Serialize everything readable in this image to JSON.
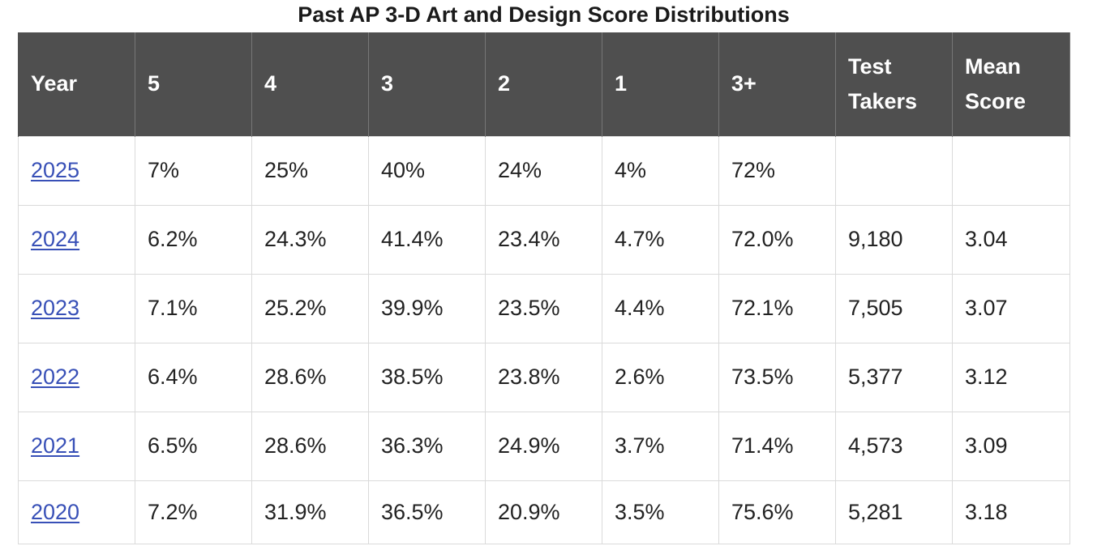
{
  "title": "Past AP 3-D Art and Design Score Distributions",
  "columns": [
    "Year",
    "5",
    "4",
    "3",
    "2",
    "1",
    "3+",
    "Test Takers",
    "Mean Score"
  ],
  "rows": [
    {
      "year": "2025",
      "s5": "7%",
      "s4": "25%",
      "s3": "40%",
      "s2": "24%",
      "s1": "4%",
      "s3plus": "72%",
      "takers": "",
      "mean": ""
    },
    {
      "year": "2024",
      "s5": "6.2%",
      "s4": "24.3%",
      "s3": "41.4%",
      "s2": "23.4%",
      "s1": "4.7%",
      "s3plus": "72.0%",
      "takers": "9,180",
      "mean": "3.04"
    },
    {
      "year": "2023",
      "s5": "7.1%",
      "s4": "25.2%",
      "s3": "39.9%",
      "s2": "23.5%",
      "s1": "4.4%",
      "s3plus": "72.1%",
      "takers": "7,505",
      "mean": "3.07"
    },
    {
      "year": "2022",
      "s5": "6.4%",
      "s4": "28.6%",
      "s3": "38.5%",
      "s2": "23.8%",
      "s1": "2.6%",
      "s3plus": "73.5%",
      "takers": "5,377",
      "mean": "3.12"
    },
    {
      "year": "2021",
      "s5": "6.5%",
      "s4": "28.6%",
      "s3": "36.3%",
      "s2": "24.9%",
      "s1": "3.7%",
      "s3plus": "71.4%",
      "takers": "4,573",
      "mean": "3.09"
    },
    {
      "year": "2020",
      "s5": "7.2%",
      "s4": "31.9%",
      "s3": "36.5%",
      "s2": "20.9%",
      "s1": "3.5%",
      "s3plus": "75.6%",
      "takers": "5,281",
      "mean": "3.18"
    }
  ],
  "colors": {
    "header_bg": "#4f4f4f",
    "header_text": "#ffffff",
    "link": "#3850b7",
    "grid": "#dadada"
  }
}
